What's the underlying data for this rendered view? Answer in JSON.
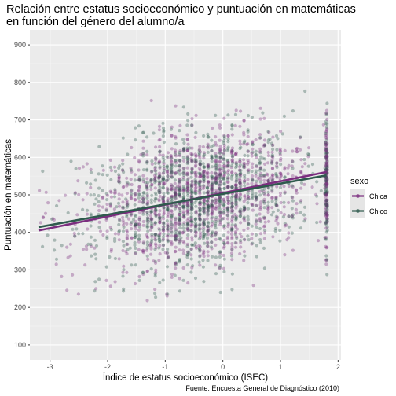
{
  "chart_data": {
    "type": "scatter",
    "title_lines": [
      "Relación entre estatus socioeconómico y puntuación en matemáticas",
      "en función del género del alumno/a"
    ],
    "xlabel": "Índice de estatus socioeconómico (ISEC)",
    "ylabel": "Puntuación en matemáticas",
    "caption": "Fuente: Encuesta General de Diagnóstico (2010)",
    "xlim": [
      -3.35,
      2.05
    ],
    "ylim": [
      60,
      940
    ],
    "x_ticks": [
      -3,
      -2,
      -1,
      0,
      1,
      2
    ],
    "x_tick_labels": [
      "-3",
      "-2",
      "-1",
      "0",
      "1",
      "2"
    ],
    "y_ticks": [
      100,
      200,
      300,
      400,
      500,
      600,
      700,
      800,
      900
    ],
    "y_tick_labels": [
      "100",
      "200",
      "300",
      "400",
      "500",
      "600",
      "700",
      "800",
      "900"
    ],
    "grid": true,
    "legend": {
      "title": "sexo",
      "position": "right",
      "entries": [
        "Chica",
        "Chico"
      ]
    },
    "series": [
      {
        "name": "Chica",
        "color": "#7B2D7F",
        "point_alpha": 0.35,
        "trend_line": {
          "x": [
            -3.2,
            1.8
          ],
          "y": [
            405,
            561
          ]
        }
      },
      {
        "name": "Chico",
        "color": "#2F5A4D",
        "point_alpha": 0.35,
        "trend_line": {
          "x": [
            -3.2,
            1.8
          ],
          "y": [
            414,
            552
          ]
        }
      }
    ],
    "point_cloud": {
      "x_range": [
        -3.2,
        1.85
      ],
      "y_center_at_x": {
        "x": [
          -3.2,
          1.8
        ],
        "y": [
          410,
          557
        ]
      },
      "y_spread_sd": 90,
      "notes_visible_extremes": {
        "min_y": 140,
        "max_y": 830
      }
    }
  }
}
